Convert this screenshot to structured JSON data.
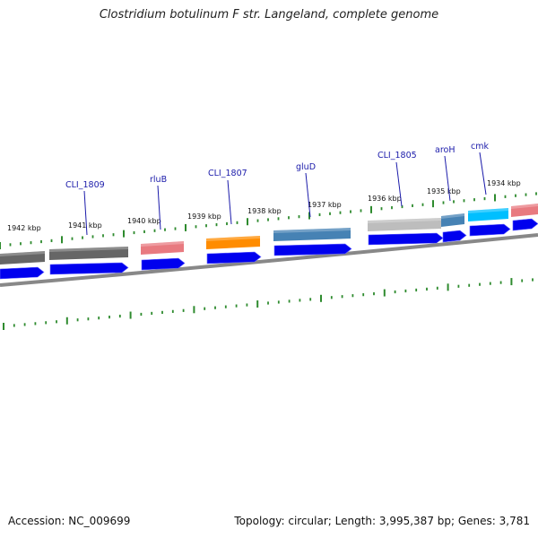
{
  "title": "Clostridium botulinum F str. Langeland, complete genome",
  "footer": {
    "accession": "Accession: NC_009699",
    "stats": "Topology: circular; Length: 3,995,387 bp; Genes: 3,781"
  },
  "colors": {
    "cds_strand": "#0000ee",
    "tick": "#2e8b2e",
    "backbone": "#888888",
    "label": "#1a1aaa"
  },
  "tick_labels": [
    "1942 kbp",
    "1941 kbp",
    "1940 kbp",
    "1939 kbp",
    "1938 kbp",
    "1937 kbp",
    "1936 kbp",
    "1935 kbp",
    "1934 kbp"
  ],
  "gene_labels": [
    "CLI_1809",
    "rluB",
    "CLI_1807",
    "gluD",
    "CLI_1805",
    "aroH",
    "cmk"
  ],
  "feature_colors": {
    "CLI_1810": "#666666",
    "CLI_1809": "#666666",
    "rluB": "#e87a80",
    "CLI_1807": "#ff8c00",
    "gluD": "#4682b4",
    "CLI_1805": "#bdbdbd",
    "aroH": "#4682b4",
    "cmk": "#00bfff",
    "next": "#e87a80"
  }
}
